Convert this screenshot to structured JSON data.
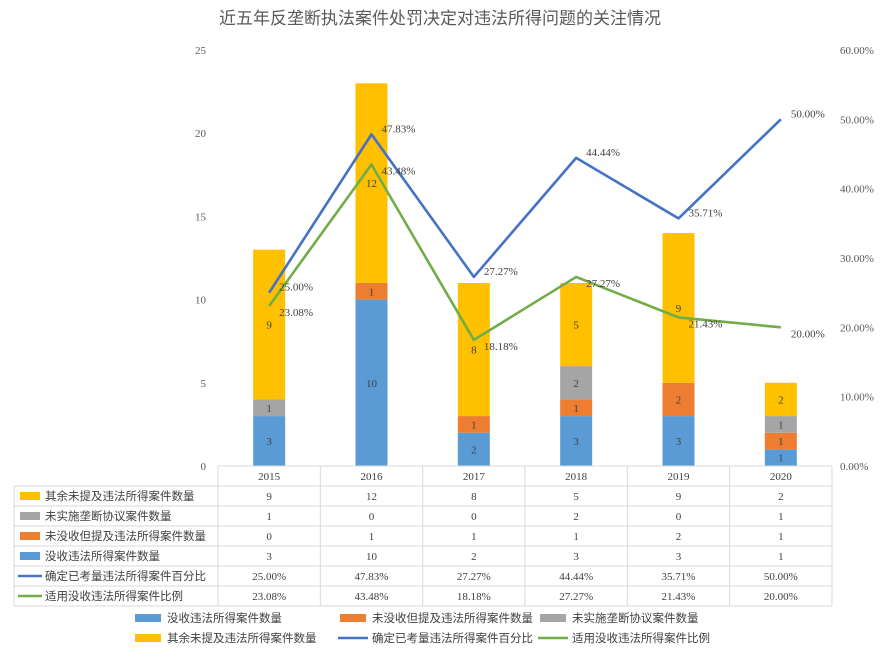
{
  "chart_data": {
    "type": "bar",
    "title": "近五年反垄断执法案件处罚决定对违法所得问题的关注情况",
    "categories": [
      "2015",
      "2016",
      "2017",
      "2018",
      "2019",
      "2020"
    ],
    "ylim": [
      0,
      25
    ],
    "y_ticks": [
      "0",
      "5",
      "10",
      "15",
      "20",
      "25"
    ],
    "y2lim": [
      0,
      60
    ],
    "y2_ticks": [
      "0.00%",
      "10.00%",
      "20.00%",
      "30.00%",
      "40.00%",
      "50.00%",
      "60.00%"
    ],
    "stacked": true,
    "series": [
      {
        "name": "没收违法所得案件数量",
        "kind": "bar",
        "axis": "left",
        "color": "#5b9bd5",
        "values": [
          3,
          10,
          2,
          3,
          3,
          1
        ]
      },
      {
        "name": "未没收但提及违法所得案件数量",
        "kind": "bar",
        "axis": "left",
        "color": "#ed7d31",
        "values": [
          0,
          1,
          1,
          1,
          2,
          1
        ]
      },
      {
        "name": "未实施垄断协议案件数量",
        "kind": "bar",
        "axis": "left",
        "color": "#a5a5a5",
        "values": [
          1,
          0,
          0,
          2,
          0,
          1
        ]
      },
      {
        "name": "其余未提及违法所得案件数量",
        "kind": "bar",
        "axis": "left",
        "color": "#ffc000",
        "values": [
          9,
          12,
          8,
          5,
          9,
          2
        ]
      },
      {
        "name": "确定已考量违法所得案件百分比",
        "kind": "line",
        "axis": "right",
        "color": "#4472c4",
        "values": [
          25.0,
          47.83,
          27.27,
          44.44,
          35.71,
          50.0
        ],
        "labels": [
          "25.00%",
          "47.83%",
          "27.27%",
          "44.44%",
          "35.71%",
          "50.00%"
        ]
      },
      {
        "name": "适用没收违法所得案件比例",
        "kind": "line",
        "axis": "right",
        "color": "#70ad47",
        "values": [
          23.08,
          43.48,
          18.18,
          27.27,
          21.43,
          20.0
        ],
        "labels": [
          "23.08%",
          "43.48%",
          "18.18%",
          "27.27%",
          "21.43%",
          "20.00%"
        ]
      }
    ],
    "data_table": {
      "rows": [
        {
          "series_index": 3,
          "cells": [
            "9",
            "12",
            "8",
            "5",
            "9",
            "2"
          ]
        },
        {
          "series_index": 2,
          "cells": [
            "1",
            "0",
            "0",
            "2",
            "0",
            "1"
          ]
        },
        {
          "series_index": 1,
          "cells": [
            "0",
            "1",
            "1",
            "1",
            "2",
            "1"
          ]
        },
        {
          "series_index": 0,
          "cells": [
            "3",
            "10",
            "2",
            "3",
            "3",
            "1"
          ]
        },
        {
          "series_index": 4,
          "cells": [
            "25.00%",
            "47.83%",
            "27.27%",
            "44.44%",
            "35.71%",
            "50.00%"
          ]
        },
        {
          "series_index": 5,
          "cells": [
            "23.08%",
            "43.48%",
            "18.18%",
            "27.27%",
            "21.43%",
            "20.00%"
          ]
        }
      ]
    },
    "legend_order": [
      0,
      1,
      2,
      3,
      4,
      5
    ],
    "legend_position": "bottom",
    "grid": false
  }
}
